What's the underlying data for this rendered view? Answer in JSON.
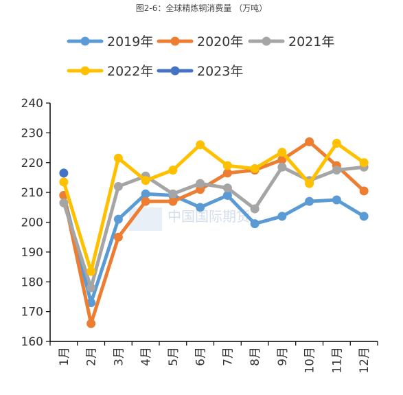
{
  "chart_data": {
    "type": "line",
    "title": "图2-6：全球精炼铜消费量  （万吨）",
    "xlabel": "",
    "ylabel": "",
    "categories": [
      "1月",
      "2月",
      "3月",
      "4月",
      "5月",
      "6月",
      "7月",
      "8月",
      "9月",
      "10月",
      "11月",
      "12月"
    ],
    "ylim": [
      160,
      240
    ],
    "yticks": [
      160,
      170,
      180,
      190,
      200,
      210,
      220,
      230,
      240
    ],
    "grid": false,
    "legend": "top",
    "series": [
      {
        "name": "2019年",
        "color": "#5B9BD5",
        "values": [
          209,
          173,
          201,
          209.5,
          209,
          205,
          209,
          199.5,
          202,
          207,
          207.5,
          202
        ]
      },
      {
        "name": "2020年",
        "color": "#ED7D31",
        "values": [
          209,
          166,
          195,
          207,
          207,
          211,
          216.5,
          217.5,
          221,
          227,
          219,
          210.5
        ]
      },
      {
        "name": "2021年",
        "color": "#A5A5A5",
        "values": [
          206.5,
          178,
          212,
          215.5,
          209.5,
          213,
          211.5,
          204.5,
          218.5,
          214,
          217.5,
          218.5
        ]
      },
      {
        "name": "2022年",
        "color": "#FFC000",
        "values": [
          213.5,
          183.5,
          221.5,
          214,
          217.5,
          226,
          219,
          218,
          223.5,
          213,
          226.5,
          220
        ]
      },
      {
        "name": "2023年",
        "color": "#4472C4",
        "values": [
          216.5,
          null,
          null,
          null,
          null,
          null,
          null,
          null,
          null,
          null,
          null,
          null
        ]
      }
    ],
    "watermark": "中国国际期货"
  }
}
